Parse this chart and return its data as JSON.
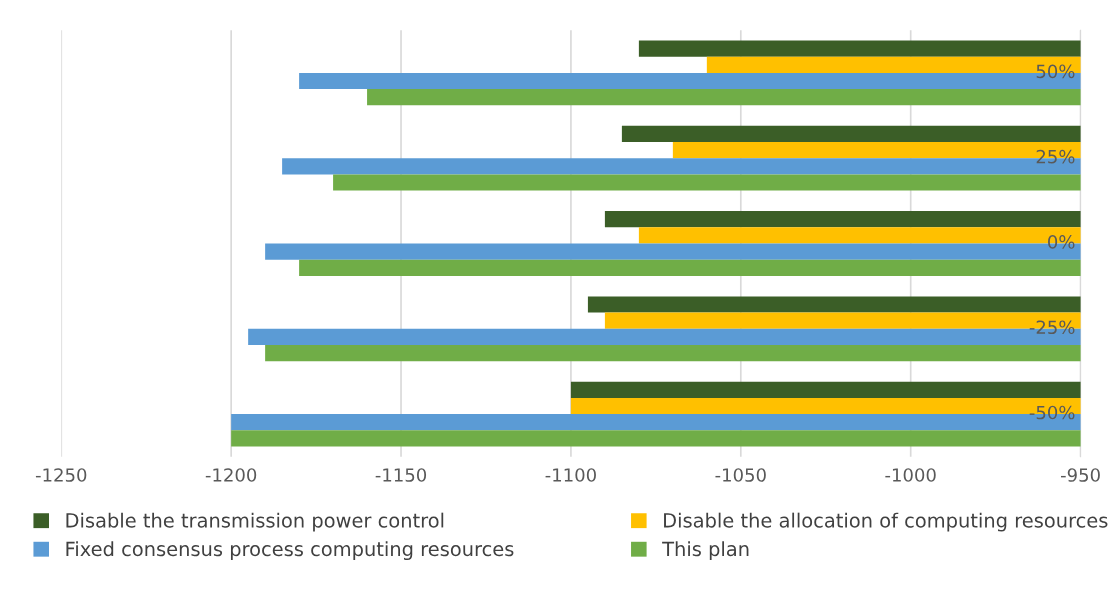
{
  "chart_data": {
    "type": "bar",
    "orientation": "horizontal",
    "categories": [
      "50%",
      "25%",
      "0%",
      "-25%",
      "-50%"
    ],
    "series": [
      {
        "name": "Disable the transmission power control",
        "color": "#3b5e27",
        "values": [
          -1080,
          -1085,
          -1090,
          -1095,
          -1100
        ]
      },
      {
        "name": "Disable the allocation of computing resources",
        "color": "#ffc000",
        "values": [
          -1060,
          -1070,
          -1080,
          -1090,
          -1100
        ]
      },
      {
        "name": "Fixed consensus process computing resources",
        "color": "#5b9bd5",
        "values": [
          -1180,
          -1185,
          -1190,
          -1195,
          -1200
        ]
      },
      {
        "name": "This plan",
        "color": "#70ad47",
        "values": [
          -1160,
          -1170,
          -1180,
          -1190,
          -1200
        ]
      }
    ],
    "xlim": [
      -1250,
      -950
    ],
    "xticks": [
      -1250,
      -1200,
      -1150,
      -1100,
      -1050,
      -1000,
      -950
    ],
    "grid": "x",
    "legend": "bottom"
  }
}
